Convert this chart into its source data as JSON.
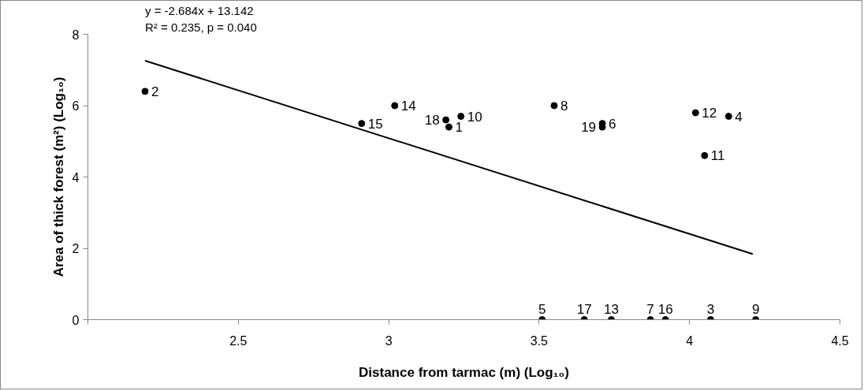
{
  "chart_data": {
    "type": "scatter",
    "xlabel": "Distance from tarmac (m) (Log₁₀)",
    "ylabel": "Area of thick forest (m²) (Log₁₀)",
    "xlim": [
      2,
      4.5
    ],
    "xticks": [
      {
        "value": 2,
        "label": null
      },
      2.5,
      3,
      3.5,
      4,
      4.5
    ],
    "ylim": [
      0,
      8
    ],
    "yticks": [
      0,
      2,
      4,
      6,
      8
    ],
    "grid": false,
    "marker": "circle",
    "series": [
      {
        "color": "#000000",
        "x": [
          3.2,
          2.19,
          4.07,
          4.13,
          3.51,
          3.71,
          3.87,
          3.55,
          4.22,
          3.24,
          4.05,
          4.02,
          3.74,
          3.02,
          2.91,
          3.92,
          3.65,
          3.19,
          3.71
        ],
        "values": [
          5.4,
          6.4,
          0,
          5.7,
          0,
          5.5,
          0,
          6.0,
          0,
          5.7,
          4.6,
          5.8,
          0,
          6.0,
          5.5,
          0,
          0,
          5.6,
          5.4
        ]
      },
      {
        "type": "line",
        "marker": "none",
        "color": "#000000",
        "x": [
          2.19,
          4.21
        ],
        "values": [
          7.26,
          1.84
        ]
      }
    ],
    "annotations": [
      "y = -2.684x + 13.142",
      "R² = 0.235, p = 0.040",
      {
        "text": "1",
        "x": 3.2,
        "y": 5.4
      },
      {
        "text": "2",
        "x": 2.19,
        "y": 6.4
      },
      {
        "text": "3",
        "x": 4.07,
        "y": 0
      },
      {
        "text": "4",
        "x": 4.13,
        "y": 5.7
      },
      {
        "text": "5",
        "x": 3.51,
        "y": 0
      },
      {
        "text": "6",
        "x": 3.71,
        "y": 5.5
      },
      {
        "text": "7",
        "x": 3.87,
        "y": 0
      },
      {
        "text": "8",
        "x": 3.55,
        "y": 6.0
      },
      {
        "text": "9",
        "x": 4.22,
        "y": 0
      },
      {
        "text": "10",
        "x": 3.24,
        "y": 5.7
      },
      {
        "text": "11",
        "x": 4.05,
        "y": 4.6
      },
      {
        "text": "12",
        "x": 4.02,
        "y": 5.8
      },
      {
        "text": "13",
        "x": 3.74,
        "y": 0
      },
      {
        "text": "14",
        "x": 3.02,
        "y": 6.0
      },
      {
        "text": "15",
        "x": 2.91,
        "y": 5.5
      },
      {
        "text": "16",
        "x": 3.92,
        "y": 0
      },
      {
        "text": "17",
        "x": 3.65,
        "y": 0
      },
      {
        "text": "18",
        "x": 3.19,
        "y": 5.6
      },
      {
        "text": "19",
        "x": 3.71,
        "y": 5.4
      }
    ]
  }
}
